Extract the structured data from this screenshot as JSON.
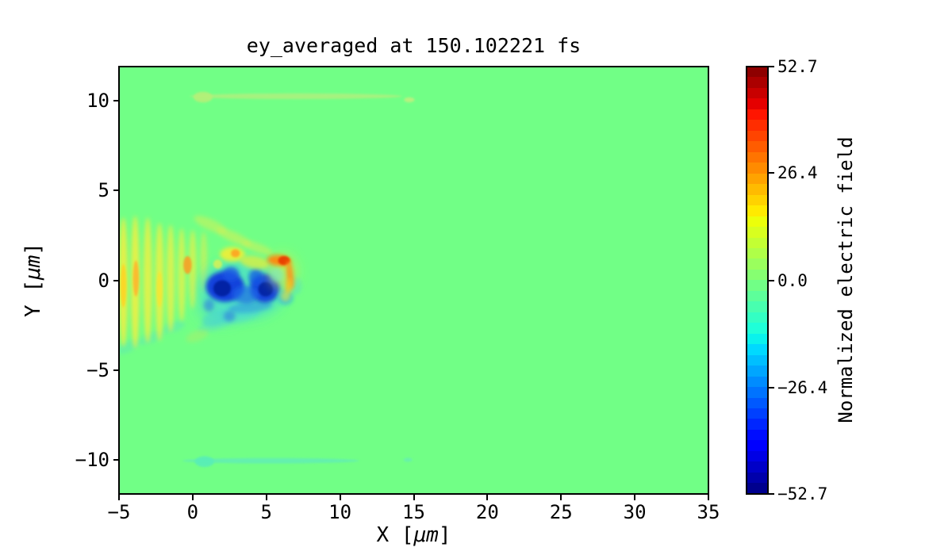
{
  "figure": {
    "background": "#ffffff",
    "frame_color": "#000000"
  },
  "chart_data": {
    "type": "heatmap",
    "title": "ey_averaged at 150.102221 fs",
    "xlabel": {
      "pre": "X [",
      "mu": "μm",
      "post": "]"
    },
    "ylabel": {
      "pre": "Y [",
      "mu": "μm",
      "post": "]"
    },
    "xlim": [
      -5,
      35
    ],
    "ylim": [
      -11.9,
      11.9
    ],
    "x_tick_values": [
      -5,
      0,
      5,
      10,
      15,
      20,
      25,
      30,
      35
    ],
    "x_tick_labels": [
      "−5",
      "0",
      "5",
      "10",
      "15",
      "20",
      "25",
      "30",
      "35"
    ],
    "y_tick_values": [
      10,
      5,
      0,
      -5,
      -10
    ],
    "y_tick_labels": [
      "10",
      "5",
      "0",
      "−5",
      "−10"
    ],
    "grid": false,
    "background_value": 0.0,
    "colorbar": {
      "label": "Normalized electric field",
      "tick_values": [
        52.7,
        26.4,
        0.0,
        -26.4,
        -52.7
      ],
      "tick_labels": [
        "52.7",
        "26.4",
        "0.0",
        "−26.4",
        "−52.7"
      ],
      "vmin": -52.7,
      "vmax": 52.7,
      "n_levels": 40,
      "colormap": "jet",
      "jet_segments": {
        "r": [
          [
            0,
            0
          ],
          [
            0.35,
            0
          ],
          [
            0.66,
            1
          ],
          [
            0.89,
            1
          ],
          [
            1,
            0.5
          ]
        ],
        "g": [
          [
            0,
            0
          ],
          [
            0.125,
            0
          ],
          [
            0.375,
            1
          ],
          [
            0.64,
            1
          ],
          [
            0.91,
            0
          ],
          [
            1,
            0
          ]
        ],
        "b": [
          [
            0,
            0.5
          ],
          [
            0.11,
            1
          ],
          [
            0.34,
            1
          ],
          [
            0.65,
            0
          ],
          [
            1,
            0
          ]
        ]
      }
    },
    "features": [
      {
        "x": 7.0,
        "y": 10.25,
        "rx": 7.2,
        "ry": 0.16,
        "c": "#aef07e",
        "o": 0.85,
        "b": 1
      },
      {
        "x": 0.7,
        "y": 10.2,
        "rx": 0.65,
        "ry": 0.3,
        "c": "#b6f078",
        "o": 0.9,
        "b": 1
      },
      {
        "x": 14.7,
        "y": 10.05,
        "rx": 0.35,
        "ry": 0.14,
        "c": "#c0ef80",
        "o": 0.9,
        "b": 1
      },
      {
        "x": 5.3,
        "y": -10.05,
        "rx": 6.0,
        "ry": 0.15,
        "c": "#62eeb2",
        "o": 0.9,
        "b": 1
      },
      {
        "x": 0.8,
        "y": -10.1,
        "rx": 0.65,
        "ry": 0.3,
        "c": "#58edb8",
        "o": 0.9,
        "b": 1
      },
      {
        "x": 14.6,
        "y": -10.0,
        "rx": 0.3,
        "ry": 0.11,
        "c": "#66edb5",
        "o": 0.8,
        "b": 1
      },
      {
        "x": -4.4,
        "y": -3.7,
        "rx": 0.9,
        "ry": 0.3,
        "rot": -25,
        "c": "#58e2c4",
        "o": 0.4,
        "b": 2
      },
      {
        "x": -2.8,
        "y": -3.2,
        "rx": 0.9,
        "ry": 0.28,
        "rot": -22,
        "c": "#58e2c4",
        "o": 0.4,
        "b": 2
      },
      {
        "x": -1.3,
        "y": -2.6,
        "rx": 0.8,
        "ry": 0.28,
        "rot": -18,
        "c": "#58e2c4",
        "o": 0.4,
        "b": 2
      },
      {
        "x": -4.7,
        "y": -0.1,
        "rx": 0.3,
        "ry": 3.6,
        "c": "#eff043",
        "o": 0.9,
        "b": 2
      },
      {
        "x": -3.9,
        "y": -0.1,
        "rx": 0.3,
        "ry": 3.7,
        "c": "#eff043",
        "o": 0.9,
        "b": 2
      },
      {
        "x": -3.05,
        "y": 0.0,
        "rx": 0.3,
        "ry": 3.5,
        "c": "#eff043",
        "o": 0.85,
        "b": 2
      },
      {
        "x": -2.25,
        "y": -0.1,
        "rx": 0.3,
        "ry": 3.3,
        "c": "#eff043",
        "o": 0.85,
        "b": 2
      },
      {
        "x": -1.5,
        "y": 0.1,
        "rx": 0.28,
        "ry": 3.0,
        "c": "#eff043",
        "o": 0.8,
        "b": 2
      },
      {
        "x": -0.75,
        "y": 0.3,
        "rx": 0.26,
        "ry": 2.6,
        "c": "#eff043",
        "o": 0.75,
        "b": 2
      },
      {
        "x": 0.0,
        "y": 0.6,
        "rx": 0.26,
        "ry": 2.2,
        "c": "#eff043",
        "o": 0.7,
        "b": 2
      },
      {
        "x": 0.75,
        "y": 1.0,
        "rx": 0.24,
        "ry": 1.7,
        "c": "#e0ee4e",
        "o": 0.6,
        "b": 2
      },
      {
        "x": -4.7,
        "y": -0.3,
        "rx": 0.2,
        "ry": 1.2,
        "c": "#ffd21e",
        "o": 0.85,
        "b": 1
      },
      {
        "x": -3.85,
        "y": 0.1,
        "rx": 0.2,
        "ry": 1.0,
        "c": "#ffb32a",
        "o": 0.85,
        "b": 1
      },
      {
        "x": -2.25,
        "y": -0.5,
        "rx": 0.2,
        "ry": 1.0,
        "c": "#f7e52e",
        "o": 0.8,
        "b": 1
      },
      {
        "x": -0.35,
        "y": 0.85,
        "rx": 0.28,
        "ry": 0.5,
        "c": "#ff9a1e",
        "o": 0.85,
        "b": 1
      },
      {
        "x": 1.2,
        "y": 3.1,
        "rx": 1.2,
        "ry": 0.3,
        "rot": 24,
        "c": "#d4f055",
        "o": 0.55,
        "b": 2
      },
      {
        "x": 2.8,
        "y": 2.4,
        "rx": 1.3,
        "ry": 0.28,
        "rot": 24,
        "c": "#d4f055",
        "o": 0.6,
        "b": 2
      },
      {
        "x": 4.4,
        "y": 1.8,
        "rx": 1.1,
        "ry": 0.26,
        "rot": 20,
        "c": "#d4f055",
        "o": 0.55,
        "b": 2
      },
      {
        "x": 1.5,
        "y": -2.5,
        "rx": 1.2,
        "ry": 0.3,
        "rot": -16,
        "c": "#5adfc0",
        "o": 0.45,
        "b": 2
      },
      {
        "x": 3.3,
        "y": -2.0,
        "rx": 1.3,
        "ry": 0.3,
        "rot": -12,
        "c": "#5adfc0",
        "o": 0.5,
        "b": 2
      },
      {
        "x": 0.3,
        "y": -3.1,
        "rx": 0.8,
        "ry": 0.3,
        "rot": -20,
        "c": "#b8ec60",
        "o": 0.4,
        "b": 2
      },
      {
        "x": 3.4,
        "y": -0.5,
        "rx": 3.0,
        "ry": 1.7,
        "c": "#3cd4e4",
        "o": 0.55,
        "b": 3
      },
      {
        "x": 2.0,
        "y": -1.6,
        "rx": 1.8,
        "ry": 0.9,
        "c": "#49dcd2",
        "o": 0.4,
        "b": 3
      },
      {
        "x": 3.9,
        "y": -1.5,
        "rx": 1.5,
        "ry": 0.3,
        "rot": -6,
        "c": "#2f9ae2",
        "o": 0.6,
        "b": 2
      },
      {
        "x": 1.6,
        "y": -2.1,
        "rx": 1.0,
        "ry": 0.4,
        "rot": -18,
        "c": "#40cfd8",
        "o": 0.5,
        "b": 2
      },
      {
        "x": 2.5,
        "y": -2.0,
        "rx": 0.4,
        "ry": 0.3,
        "c": "#2e7fe0",
        "o": 0.6,
        "b": 2
      },
      {
        "x": 1.1,
        "y": -1.4,
        "rx": 0.35,
        "ry": 0.35,
        "c": "#2e7fe0",
        "o": 0.6,
        "b": 2
      },
      {
        "x": 2.2,
        "y": -0.35,
        "rx": 1.3,
        "ry": 0.85,
        "c": "#0c33dd",
        "o": 0.92,
        "b": 2
      },
      {
        "x": 4.9,
        "y": -0.45,
        "rx": 1.0,
        "ry": 0.8,
        "c": "#0c33dd",
        "o": 0.9,
        "b": 2
      },
      {
        "x": 3.6,
        "y": -0.8,
        "rx": 0.9,
        "ry": 0.5,
        "c": "#1e6ae8",
        "o": 0.7,
        "b": 2
      },
      {
        "x": 2.6,
        "y": 0.35,
        "rx": 0.55,
        "ry": 0.4,
        "c": "#1656e6",
        "o": 0.8,
        "b": 2
      },
      {
        "x": 4.3,
        "y": 0.15,
        "rx": 0.5,
        "ry": 0.5,
        "c": "#1656e6",
        "o": 0.75,
        "b": 2
      },
      {
        "x": 2.0,
        "y": -0.45,
        "rx": 0.6,
        "ry": 0.45,
        "c": "#051d9e",
        "o": 0.9,
        "b": 1
      },
      {
        "x": 4.95,
        "y": -0.5,
        "rx": 0.5,
        "ry": 0.4,
        "c": "#051d9e",
        "o": 0.85,
        "b": 1
      },
      {
        "x": 6.3,
        "y": -0.95,
        "rx": 0.5,
        "ry": 0.4,
        "c": "#25b4ea",
        "o": 0.8,
        "b": 2
      },
      {
        "x": 7.0,
        "y": -0.3,
        "rx": 0.4,
        "ry": 0.5,
        "c": "#55dfc8",
        "o": 0.5,
        "b": 2
      },
      {
        "x": 2.7,
        "y": 1.45,
        "rx": 0.85,
        "ry": 0.4,
        "c": "#f2ee35",
        "o": 0.9,
        "b": 2
      },
      {
        "x": 2.9,
        "y": 1.5,
        "rx": 0.3,
        "ry": 0.22,
        "c": "#ff9d20",
        "o": 0.85,
        "b": 1
      },
      {
        "x": 4.2,
        "y": 1.0,
        "rx": 1.0,
        "ry": 0.35,
        "rot": 10,
        "c": "#d9ef42",
        "o": 0.8,
        "b": 2
      },
      {
        "x": 1.7,
        "y": 0.9,
        "rx": 0.3,
        "ry": 0.25,
        "c": "#eff046",
        "o": 0.7,
        "b": 1
      },
      {
        "x": 6.1,
        "y": 0.5,
        "rx": 1.0,
        "ry": 1.0,
        "c": "#eeea38",
        "o": 0.5,
        "b": 3
      },
      {
        "x": 5.85,
        "y": 1.1,
        "rx": 0.8,
        "ry": 0.3,
        "rot": 5,
        "c": "#ff8812",
        "o": 0.95,
        "b": 2
      },
      {
        "x": 6.2,
        "y": 1.1,
        "rx": 0.4,
        "ry": 0.25,
        "c": "#e83c05",
        "o": 0.95,
        "b": 1
      },
      {
        "x": 6.6,
        "y": 0.3,
        "rx": 0.22,
        "ry": 0.8,
        "rot": -6,
        "c": "#ff9015",
        "o": 0.9,
        "b": 2
      },
      {
        "x": 6.5,
        "y": -0.35,
        "rx": 0.22,
        "ry": 0.45,
        "rot": 8,
        "c": "#f4c520",
        "o": 0.85,
        "b": 2
      },
      {
        "x": 5.7,
        "y": 0.3,
        "rx": 0.45,
        "ry": 0.4,
        "c": "#7deac0",
        "o": 0.6,
        "b": 2
      },
      {
        "x": 6.3,
        "y": -0.9,
        "rx": 0.35,
        "ry": 0.3,
        "c": "#e6ec3c",
        "o": 0.6,
        "b": 2
      }
    ]
  }
}
